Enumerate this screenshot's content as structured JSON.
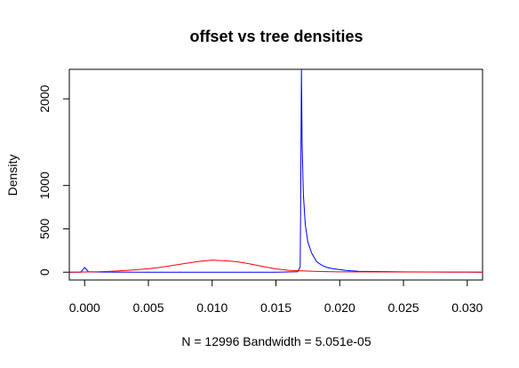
{
  "chart_data": {
    "type": "line",
    "title": "offset vs tree densities",
    "xlabel": "N = 12996   Bandwidth = 5.051e-05",
    "ylabel": "Density",
    "xlim": [
      -0.0012,
      0.0312
    ],
    "ylim": [
      -90,
      2340
    ],
    "x_ticks": [
      0,
      0.005,
      0.01,
      0.015,
      0.02,
      0.025,
      0.03
    ],
    "x_tick_labels": [
      "0.000",
      "0.005",
      "0.010",
      "0.015",
      "0.020",
      "0.025",
      "0.030"
    ],
    "y_ticks": [
      0,
      500,
      1000,
      2000
    ],
    "y_tick_labels": [
      "0",
      "500",
      "1000",
      "2000"
    ],
    "grid": false,
    "legend": "none",
    "series": [
      {
        "color": "#0000ff",
        "x": [
          -0.0012,
          -0.0003,
          0,
          0.0003,
          0.0008,
          0.005,
          0.01,
          0.015,
          0.0167,
          0.0169,
          0.01693,
          0.01697,
          0.017,
          0.01705,
          0.01715,
          0.0173,
          0.0175,
          0.0178,
          0.0182,
          0.0186,
          0.019,
          0.0195,
          0.0205,
          0.0215,
          0.025,
          0.03,
          0.0312
        ],
        "y": [
          0,
          0,
          55,
          5,
          2,
          0,
          0,
          0,
          5,
          60,
          600,
          1600,
          2340,
          1500,
          900,
          550,
          350,
          220,
          120,
          80,
          55,
          40,
          20,
          10,
          3,
          1,
          0
        ]
      },
      {
        "color": "#ff0000",
        "x": [
          -0.0012,
          0,
          0.001,
          0.002,
          0.003,
          0.004,
          0.005,
          0.006,
          0.007,
          0.008,
          0.009,
          0.01,
          0.011,
          0.012,
          0.013,
          0.014,
          0.015,
          0.016,
          0.017,
          0.018,
          0.019,
          0.02,
          0.022,
          0.025,
          0.03,
          0.0312
        ],
        "y": [
          0,
          2,
          5,
          10,
          18,
          28,
          40,
          58,
          80,
          103,
          125,
          140,
          132,
          120,
          95,
          65,
          38,
          22,
          15,
          10,
          6,
          4,
          3,
          2,
          1,
          0
        ]
      }
    ]
  }
}
